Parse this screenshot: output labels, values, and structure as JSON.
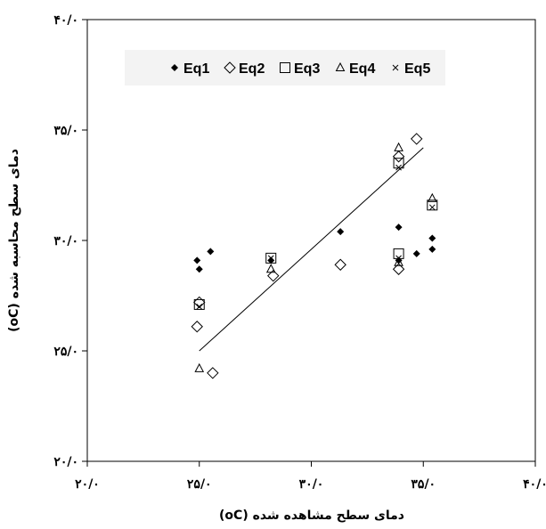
{
  "chart_data": {
    "type": "scatter",
    "title": "",
    "xlabel": "دمای سطح مشاهده شده (oC)",
    "ylabel": "دمای سطح محاسبه شده (oC)",
    "xlim": [
      20,
      40
    ],
    "ylim": [
      20,
      40
    ],
    "x_tick_values": [
      20,
      25,
      30,
      35,
      40
    ],
    "x_tick_labels": [
      "۲۰/۰",
      "۲۵/۰",
      "۳۰/۰",
      "۳۵/۰",
      "۴۰/۰"
    ],
    "y_tick_values": [
      20,
      25,
      30,
      35,
      40
    ],
    "y_tick_labels": [
      "۲۰/۰",
      "۲۵/۰",
      "۳۰/۰",
      "۳۵/۰",
      "۴۰/۰"
    ],
    "grid": false,
    "legend_position": "top",
    "series": [
      {
        "name": "Eq1",
        "marker": "diamond-filled",
        "points": [
          [
            24.9,
            29.1
          ],
          [
            25.0,
            28.7
          ],
          [
            25.5,
            29.5
          ],
          [
            28.2,
            29.1
          ],
          [
            31.3,
            30.4
          ],
          [
            33.9,
            30.6
          ],
          [
            33.9,
            29.1
          ],
          [
            34.7,
            29.4
          ],
          [
            35.4,
            29.6
          ],
          [
            35.4,
            30.1
          ]
        ]
      },
      {
        "name": "Eq2",
        "marker": "diamond-open",
        "points": [
          [
            24.9,
            26.1
          ],
          [
            25.0,
            27.2
          ],
          [
            25.6,
            24.0
          ],
          [
            28.3,
            28.4
          ],
          [
            31.3,
            28.9
          ],
          [
            33.9,
            28.7
          ],
          [
            34.7,
            34.6
          ],
          [
            33.9,
            33.8
          ]
        ]
      },
      {
        "name": "Eq3",
        "marker": "square-open",
        "points": [
          [
            25.0,
            27.1
          ],
          [
            28.2,
            29.2
          ],
          [
            33.9,
            29.4
          ],
          [
            33.9,
            33.5
          ],
          [
            35.4,
            31.6
          ]
        ]
      },
      {
        "name": "Eq4",
        "marker": "triangle-open",
        "points": [
          [
            25.0,
            24.2
          ],
          [
            28.2,
            28.7
          ],
          [
            33.9,
            29.0
          ],
          [
            33.9,
            34.2
          ],
          [
            35.4,
            31.9
          ]
        ]
      },
      {
        "name": "Eq5",
        "marker": "x",
        "points": [
          [
            25.0,
            27.0
          ],
          [
            28.2,
            29.2
          ],
          [
            33.9,
            29.2
          ],
          [
            33.9,
            33.3
          ],
          [
            35.4,
            31.5
          ]
        ]
      }
    ],
    "trendline": {
      "from": [
        25.0,
        25.0
      ],
      "to": [
        35.0,
        34.2
      ]
    }
  }
}
